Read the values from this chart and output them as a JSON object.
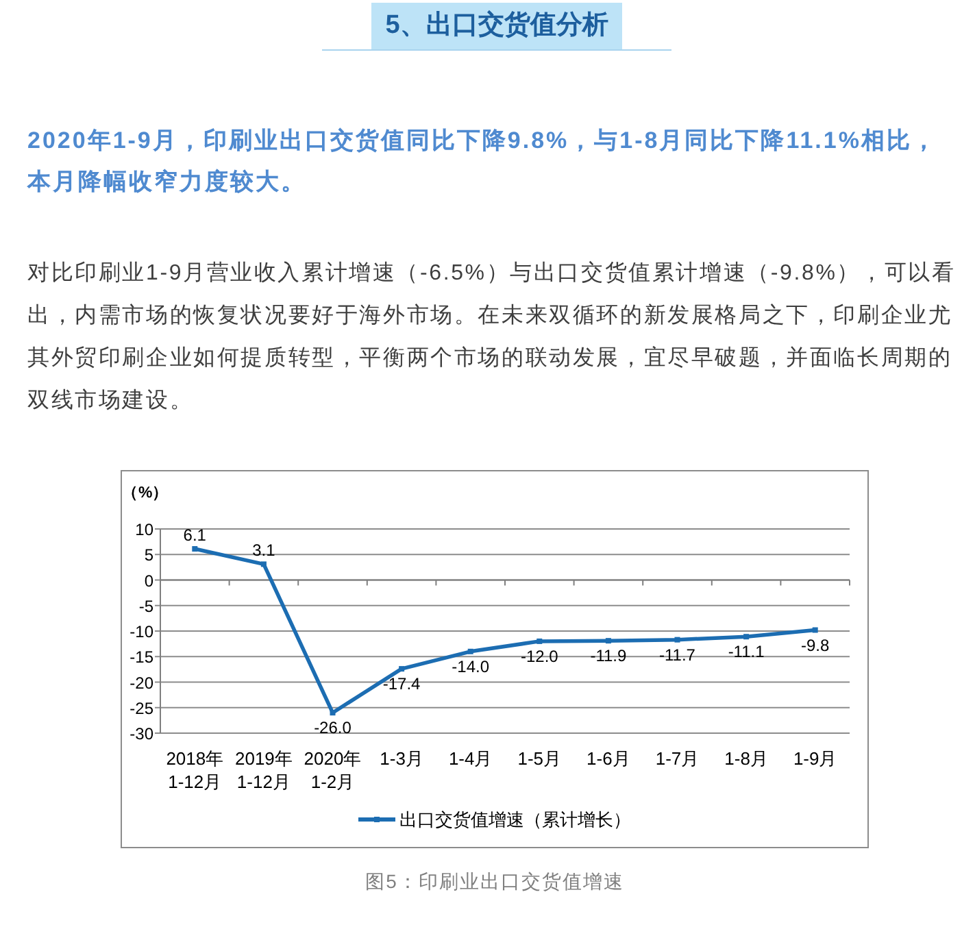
{
  "chart_data": {
    "type": "line",
    "title": "5、出口交货值分析",
    "subtitle": "2020年1-9月，印刷业出口交货值同比下降9.8%，与1-8月同比下降11.1%相比，本月降幅收窄力度较大。",
    "ylabel": "（%）",
    "annotations": [
      "对比印刷业1-9月营业收入累计增速（-6.5%）与出口交货值累计增速（-9.8%），可以看出，内需市场的恢复状况要好于海外市场。在未来双循环的新发展格局之下，印刷企业尤其外贸印刷企业如何提质转型，平衡两个市场的联动发展，宜尽早破题，并面临长周期的双线市场建设。",
      "图5：印刷业出口交货值增速"
    ],
    "categories": [
      "2018年\n1-12月",
      "2019年\n1-12月",
      "2020年\n1-2月",
      "1-3月",
      "1-4月",
      "1-5月",
      "1-6月",
      "1-7月",
      "1-8月",
      "1-9月"
    ],
    "series": [
      {
        "name": "出口交货值增速（累计增长）",
        "color": "#1c6db2",
        "values": [
          6.1,
          3.1,
          -26.0,
          -17.4,
          -14.0,
          -12.0,
          -11.9,
          -11.7,
          -11.1,
          -9.8
        ],
        "value_labels": [
          "6.1",
          "3.1",
          "-26.0",
          "-17.4",
          "-14.0",
          "-12.0",
          "-11.9",
          "-11.7",
          "-11.1",
          "-9.8"
        ]
      }
    ],
    "ylim": [
      -30,
      10
    ],
    "yticks": [
      -30,
      -25,
      -20,
      -15,
      -10,
      -5,
      0,
      5,
      10
    ],
    "grid": "y",
    "legend": "bottom",
    "marker": "square",
    "line_style": "solid"
  }
}
